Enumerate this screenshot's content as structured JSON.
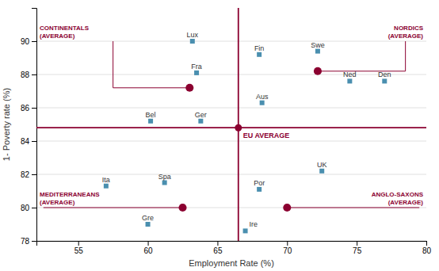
{
  "chart_data": {
    "type": "scatter",
    "x_label": "Employment Rate (%)",
    "y_label": "1- Poverty rate (%)",
    "xlim": [
      52,
      80
    ],
    "ylim": [
      78,
      92
    ],
    "xticks": [
      55,
      60,
      65,
      70,
      75,
      80
    ],
    "yticks": [
      78,
      80,
      82,
      84,
      86,
      88,
      90
    ],
    "grid": true,
    "series": [
      {
        "marker": "square",
        "color": "#4a8faf",
        "labels": [
          "Lux",
          "Fra",
          "Bel",
          "Ger",
          "Fin",
          "Swe",
          "Ned",
          "Den",
          "Aus",
          "Ita",
          "Spa",
          "Gre",
          "Por",
          "Ire",
          "UK"
        ],
        "x": [
          63.2,
          63.5,
          60.2,
          63.8,
          68.0,
          72.2,
          74.5,
          77.0,
          68.2,
          57.0,
          61.2,
          60.0,
          68.0,
          67.0,
          72.5
        ],
        "values": [
          90.0,
          88.1,
          85.2,
          85.2,
          89.2,
          89.4,
          87.6,
          87.6,
          86.3,
          81.3,
          81.5,
          79.0,
          81.1,
          78.6,
          82.2
        ]
      }
    ],
    "reference_lines": {
      "x": 66.5,
      "y": 84.8,
      "color": "#8b0030"
    },
    "eu_average": {
      "label": "EU AVERAGE",
      "x": 66.5,
      "y": 84.8,
      "color": "#8b0030",
      "marker": "circle"
    },
    "averages": {
      "color": "#8b0030",
      "marker": "circle",
      "items": [
        {
          "label": [
            "CONTINENTALS",
            "(AVERAGE)"
          ],
          "x": 63.0,
          "y": 87.2,
          "bracket": [
            {
              "x": [
                57.5,
                57.5
              ],
              "y": [
                87.2,
                90.0
              ]
            },
            {
              "x": [
                57.5,
                63.0
              ],
              "y": [
                87.2,
                87.2
              ]
            }
          ]
        },
        {
          "label": [
            "NORDICS",
            "(AVERAGE)"
          ],
          "x": 72.2,
          "y": 88.2,
          "bracket": [
            {
              "x": [
                78.5,
                78.5
              ],
              "y": [
                88.2,
                90.0
              ]
            },
            {
              "x": [
                72.2,
                78.5
              ],
              "y": [
                88.2,
                88.2
              ]
            }
          ]
        },
        {
          "label": [
            "MEDITERRANEANS",
            "(AVERAGE)"
          ],
          "x": 62.5,
          "y": 80.0,
          "bracket": [
            {
              "x": [
                52.5,
                62.5
              ],
              "y": [
                80.0,
                80.0
              ]
            }
          ]
        },
        {
          "label": [
            "ANGLO-SAXONS",
            "(AVERAGE)"
          ],
          "x": 70.0,
          "y": 80.0,
          "bracket": [
            {
              "x": [
                70.0,
                79.5
              ],
              "y": [
                80.0,
                80.0
              ]
            }
          ]
        }
      ]
    }
  }
}
